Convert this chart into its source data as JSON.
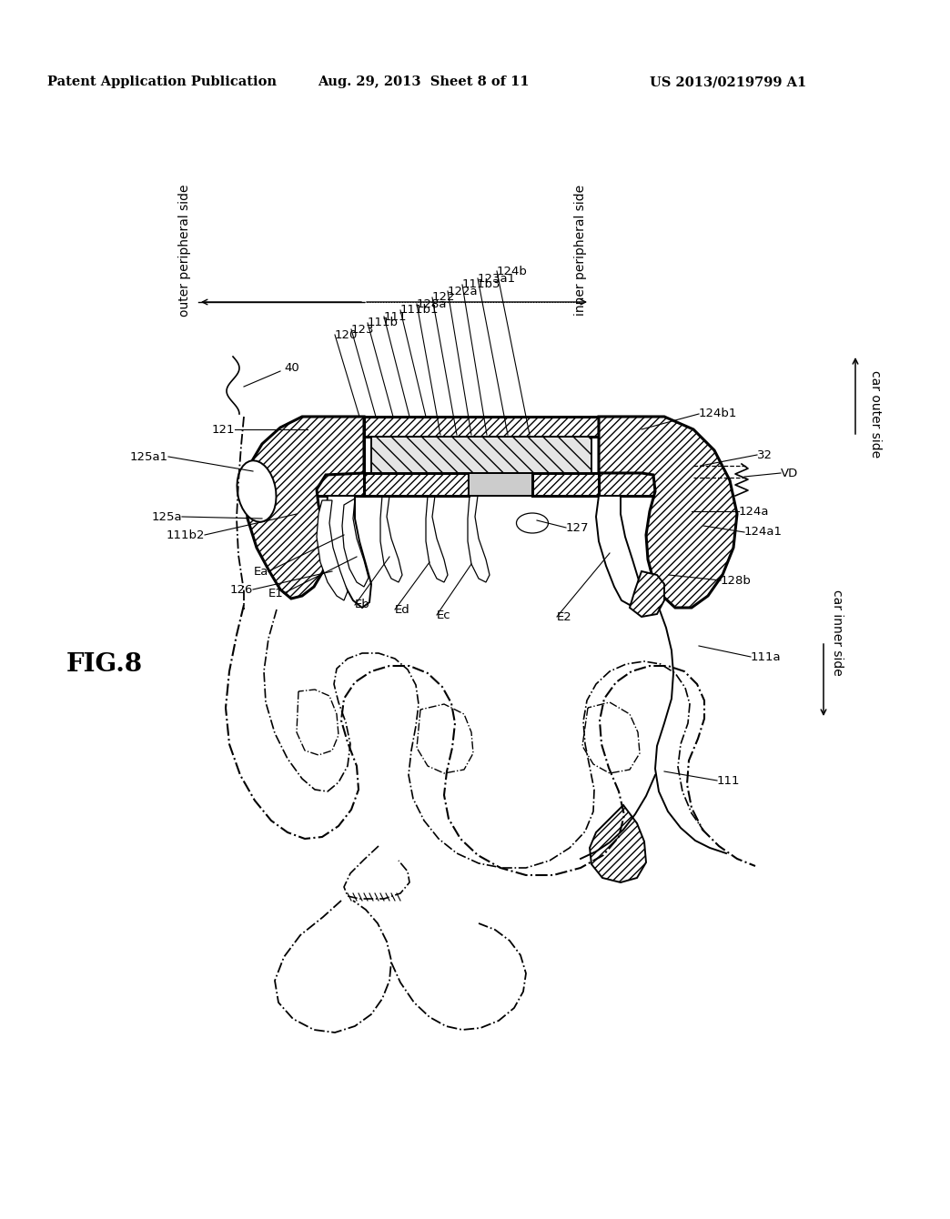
{
  "patent_header_left": "Patent Application Publication",
  "patent_header_center": "Aug. 29, 2013  Sheet 8 of 11",
  "patent_header_right": "US 2013/0219799 A1",
  "background_color": "#ffffff",
  "fig_label": "FIG.8",
  "outer_peripheral_side": "outer peripheral side",
  "inner_peripheral_side": "inner peripheral side",
  "car_outer_side": "car outer side",
  "car_inner_side": "car inner side"
}
